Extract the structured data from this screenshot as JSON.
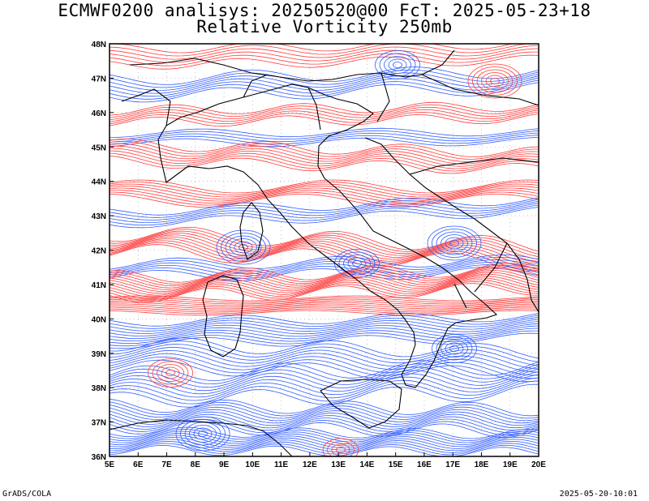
{
  "title": {
    "line1": "ECMWF0200 analisys: 20250520@00 FcT: 2025-05-23+18",
    "line2": "Relative Vorticity 250mb"
  },
  "footer": {
    "left": "GrADS/COLA",
    "right": "2025-05-20-10:01"
  },
  "map": {
    "lon_range": [
      5,
      20
    ],
    "lat_range": [
      36,
      48
    ],
    "lon_ticks": [
      "5E",
      "6E",
      "7E",
      "8E",
      "9E",
      "10E",
      "11E",
      "12E",
      "13E",
      "14E",
      "15E",
      "16E",
      "17E",
      "18E",
      "19E",
      "20E"
    ],
    "lat_ticks": [
      "36N",
      "37N",
      "38N",
      "39N",
      "40N",
      "41N",
      "42N",
      "43N",
      "44N",
      "45N",
      "46N",
      "47N",
      "48N"
    ],
    "colors": {
      "positive": "#ff3b3b",
      "negative": "#2f5bff",
      "coast": "#000000",
      "grid": "#9a9a9a"
    }
  }
}
